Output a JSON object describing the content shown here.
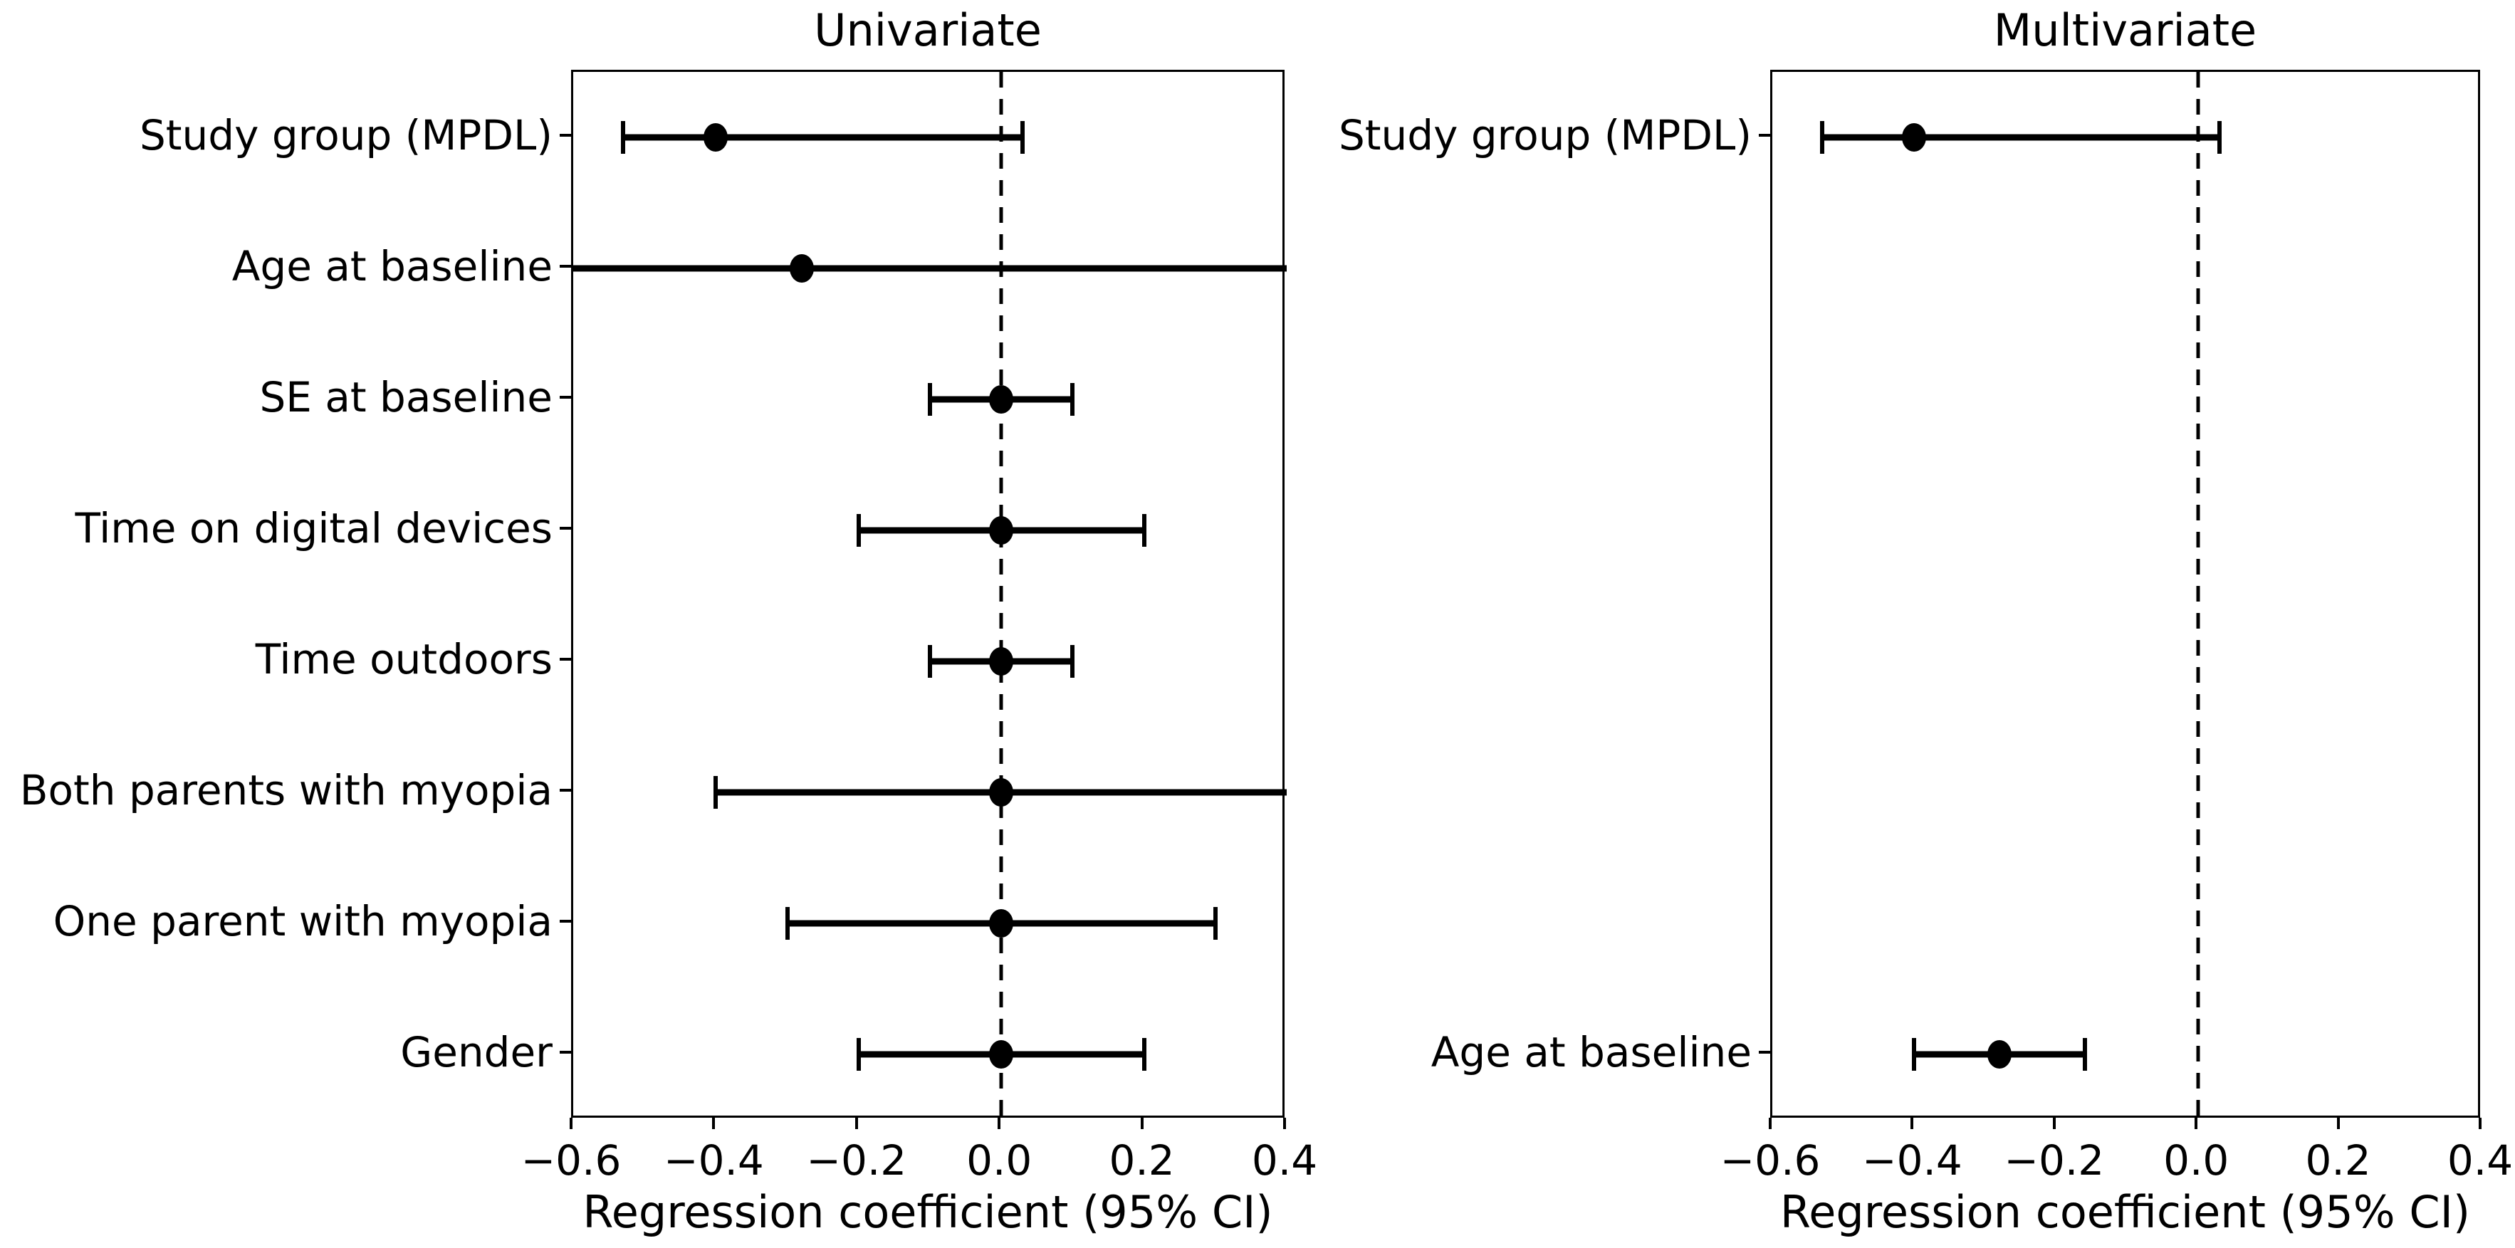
{
  "figure": {
    "background_color": "#ffffff",
    "foreground_color": "#000000",
    "x_axis_label": "Regression coefficient (95% CI)"
  },
  "chart_data": [
    {
      "type": "scatter",
      "subtype": "forest-plot-errorbar",
      "title": "Univariate",
      "xlabel": "Regression coefficient (95% CI)",
      "xlim": [
        -0.6,
        0.4
      ],
      "x_ticks": [
        -0.6,
        -0.4,
        -0.2,
        0.0,
        0.2,
        0.4
      ],
      "x_tick_labels": [
        "−0.6",
        "−0.4",
        "−0.2",
        "0.0",
        "0.2",
        "0.4"
      ],
      "zero_reference_line": 0.0,
      "grid": false,
      "n_slots": 8,
      "rows": [
        {
          "label": "Study group (MPDL)",
          "slot": 0,
          "estimate": -0.4,
          "ci_low": -0.53,
          "ci_high": 0.03,
          "clip_low": false,
          "clip_high": false
        },
        {
          "label": "Age at baseline",
          "slot": 1,
          "estimate": -0.28,
          "ci_low": -0.6,
          "ci_high": 0.4,
          "clip_low": true,
          "clip_high": true
        },
        {
          "label": "SE at baseline",
          "slot": 2,
          "estimate": 0.0,
          "ci_low": -0.1,
          "ci_high": 0.1,
          "clip_low": false,
          "clip_high": false
        },
        {
          "label": "Time on digital devices",
          "slot": 3,
          "estimate": 0.0,
          "ci_low": -0.2,
          "ci_high": 0.2,
          "clip_low": false,
          "clip_high": false
        },
        {
          "label": "Time outdoors",
          "slot": 4,
          "estimate": 0.0,
          "ci_low": -0.1,
          "ci_high": 0.1,
          "clip_low": false,
          "clip_high": false
        },
        {
          "label": "Both parents with myopia",
          "slot": 5,
          "estimate": 0.0,
          "ci_low": -0.4,
          "ci_high": 0.4,
          "clip_low": false,
          "clip_high": true
        },
        {
          "label": "One parent with myopia",
          "slot": 6,
          "estimate": 0.0,
          "ci_low": -0.3,
          "ci_high": 0.3,
          "clip_low": false,
          "clip_high": false
        },
        {
          "label": "Gender",
          "slot": 7,
          "estimate": 0.0,
          "ci_low": -0.2,
          "ci_high": 0.2,
          "clip_low": false,
          "clip_high": false
        }
      ]
    },
    {
      "type": "scatter",
      "subtype": "forest-plot-errorbar",
      "title": "Multivariate",
      "xlabel": "Regression coefficient (95% CI)",
      "xlim": [
        -0.6,
        0.4
      ],
      "x_ticks": [
        -0.6,
        -0.4,
        -0.2,
        0.0,
        0.2,
        0.4
      ],
      "x_tick_labels": [
        "−0.6",
        "−0.4",
        "−0.2",
        "0.0",
        "0.2",
        "0.4"
      ],
      "zero_reference_line": 0.0,
      "grid": false,
      "n_slots": 8,
      "rows": [
        {
          "label": "Study group (MPDL)",
          "slot": 0,
          "estimate": -0.4,
          "ci_low": -0.53,
          "ci_high": 0.03,
          "clip_low": false,
          "clip_high": false
        },
        {
          "label": "Age at baseline",
          "slot": 7,
          "estimate": -0.28,
          "ci_low": -0.4,
          "ci_high": -0.16,
          "clip_low": false,
          "clip_high": false
        }
      ]
    }
  ]
}
